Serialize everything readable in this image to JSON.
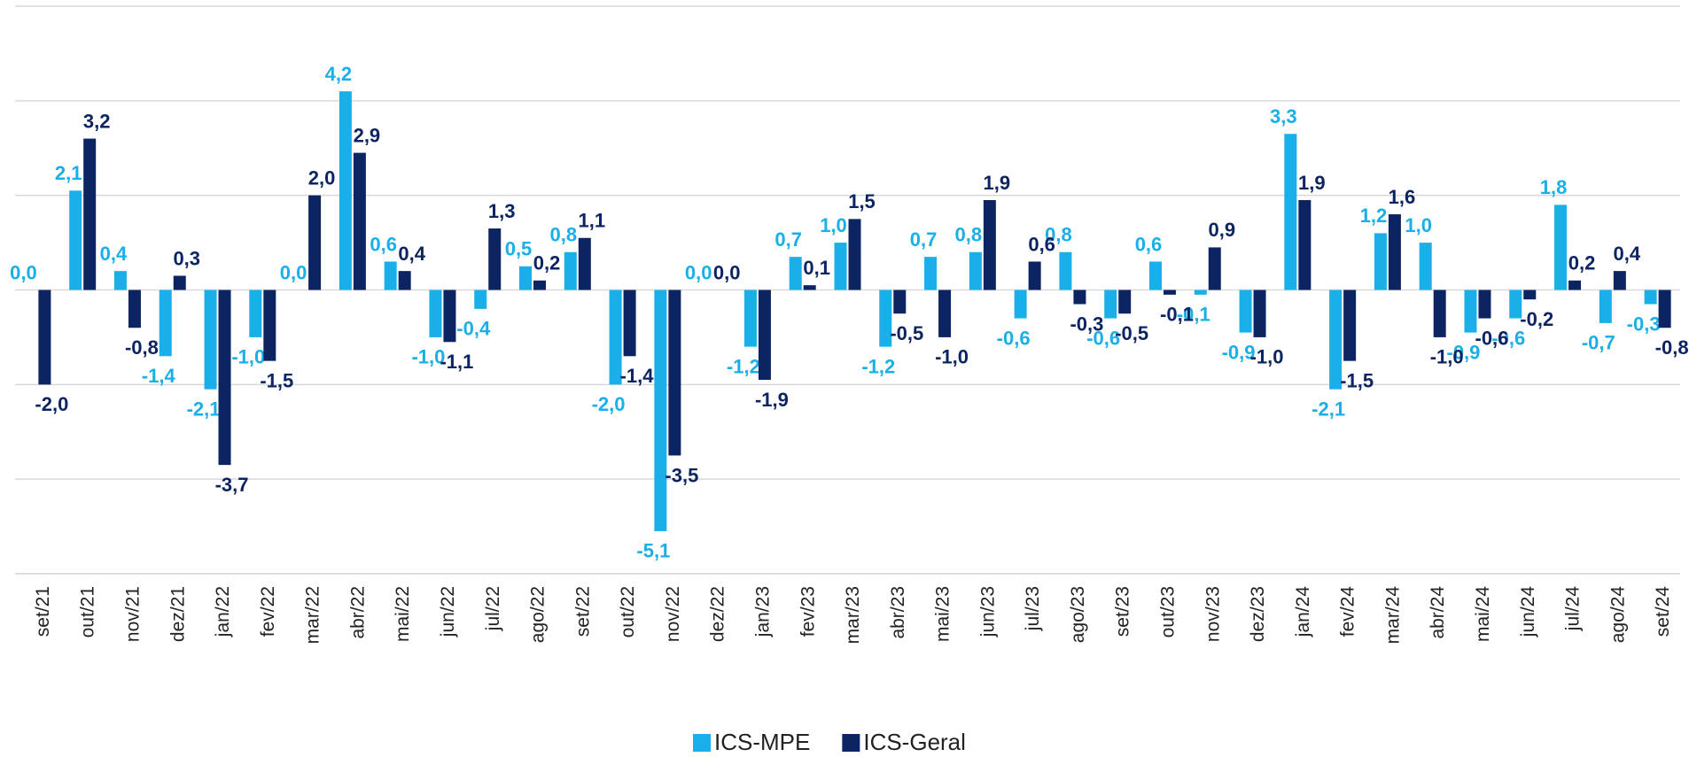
{
  "chart_data": {
    "type": "bar",
    "categories": [
      "set/21",
      "out/21",
      "nov/21",
      "dez/21",
      "jan/22",
      "fev/22",
      "mar/22",
      "abr/22",
      "mai/22",
      "jun/22",
      "jul/22",
      "ago/22",
      "set/22",
      "out/22",
      "nov/22",
      "dez/22",
      "jan/23",
      "fev/23",
      "mar/23",
      "abr/23",
      "mai/23",
      "jun/23",
      "jul/23",
      "ago/23",
      "set/23",
      "out/23",
      "nov/23",
      "dez/23",
      "jan/24",
      "fev/24",
      "mar/24",
      "abr/24",
      "mai/24",
      "jun/24",
      "jul/24",
      "ago/24",
      "set/24"
    ],
    "series": [
      {
        "name": "ICS-MPE",
        "color": "#1aafe8",
        "values": [
          0.0,
          2.1,
          0.4,
          -1.4,
          -2.1,
          -1.0,
          0.0,
          4.2,
          0.6,
          -1.0,
          -0.4,
          0.5,
          0.8,
          -2.0,
          -5.1,
          0.0,
          -1.2,
          0.7,
          1.0,
          -1.2,
          0.7,
          0.8,
          -0.6,
          0.8,
          -0.6,
          0.6,
          -0.1,
          -0.9,
          3.3,
          -2.1,
          1.2,
          1.0,
          -0.9,
          -0.6,
          1.8,
          -0.7,
          -0.3
        ],
        "value_labels": [
          "0,0",
          "2,1",
          "0,4",
          "-1,4",
          "-2,1",
          "-1,0",
          "0,0",
          "4,2",
          "0,6",
          "-1,0",
          "-0,4",
          "0,5",
          "0,8",
          "-2,0",
          "-5,1",
          "0,0",
          "-1,2",
          "0,7",
          "1,0",
          "-1,2",
          "0,7",
          "0,8",
          "-0,6",
          "0,8",
          "-0,6",
          "0,6",
          "-0,1",
          "-0,9",
          "3,3",
          "-2,1",
          "1,2",
          "1,0",
          "-0,9",
          "-0,6",
          "1,8",
          "-0,7",
          "-0,3"
        ]
      },
      {
        "name": "ICS-Geral",
        "color": "#0c2461",
        "values": [
          -2.0,
          3.2,
          -0.8,
          0.3,
          -3.7,
          -1.5,
          2.0,
          2.9,
          0.4,
          -1.1,
          1.3,
          0.2,
          1.1,
          -1.4,
          -3.5,
          0.0,
          -1.9,
          0.1,
          1.5,
          -0.5,
          -1.0,
          1.9,
          0.6,
          -0.3,
          -0.5,
          -0.1,
          0.9,
          -1.0,
          1.9,
          -1.5,
          1.6,
          -1.0,
          -0.6,
          -0.2,
          0.2,
          0.4,
          -0.8
        ],
        "value_labels": [
          "-2,0",
          "3,2",
          "-0,8",
          "0,3",
          "-3,7",
          "-1,5",
          "2,0",
          "2,9",
          "0,4",
          "-1,1",
          "1,3",
          "0,2",
          "1,1",
          "-1,4",
          "-3,5",
          "0,0",
          "-1,9",
          "0,1",
          "1,5",
          "-0,5",
          "-1,0",
          "1,9",
          "0,6",
          "-0,3",
          "-0,5",
          "-0,1",
          "0,9",
          "-1,0",
          "1,9",
          "-1,5",
          "1,6",
          "-1,0",
          "-0,6",
          "-0,2",
          "0,2",
          "0,4",
          "-0,8"
        ]
      }
    ],
    "ylim": [
      -6,
      6
    ],
    "yticks": [
      -6,
      -4,
      -2,
      0,
      2,
      4,
      6
    ],
    "grid": true,
    "legend": "bottom"
  }
}
